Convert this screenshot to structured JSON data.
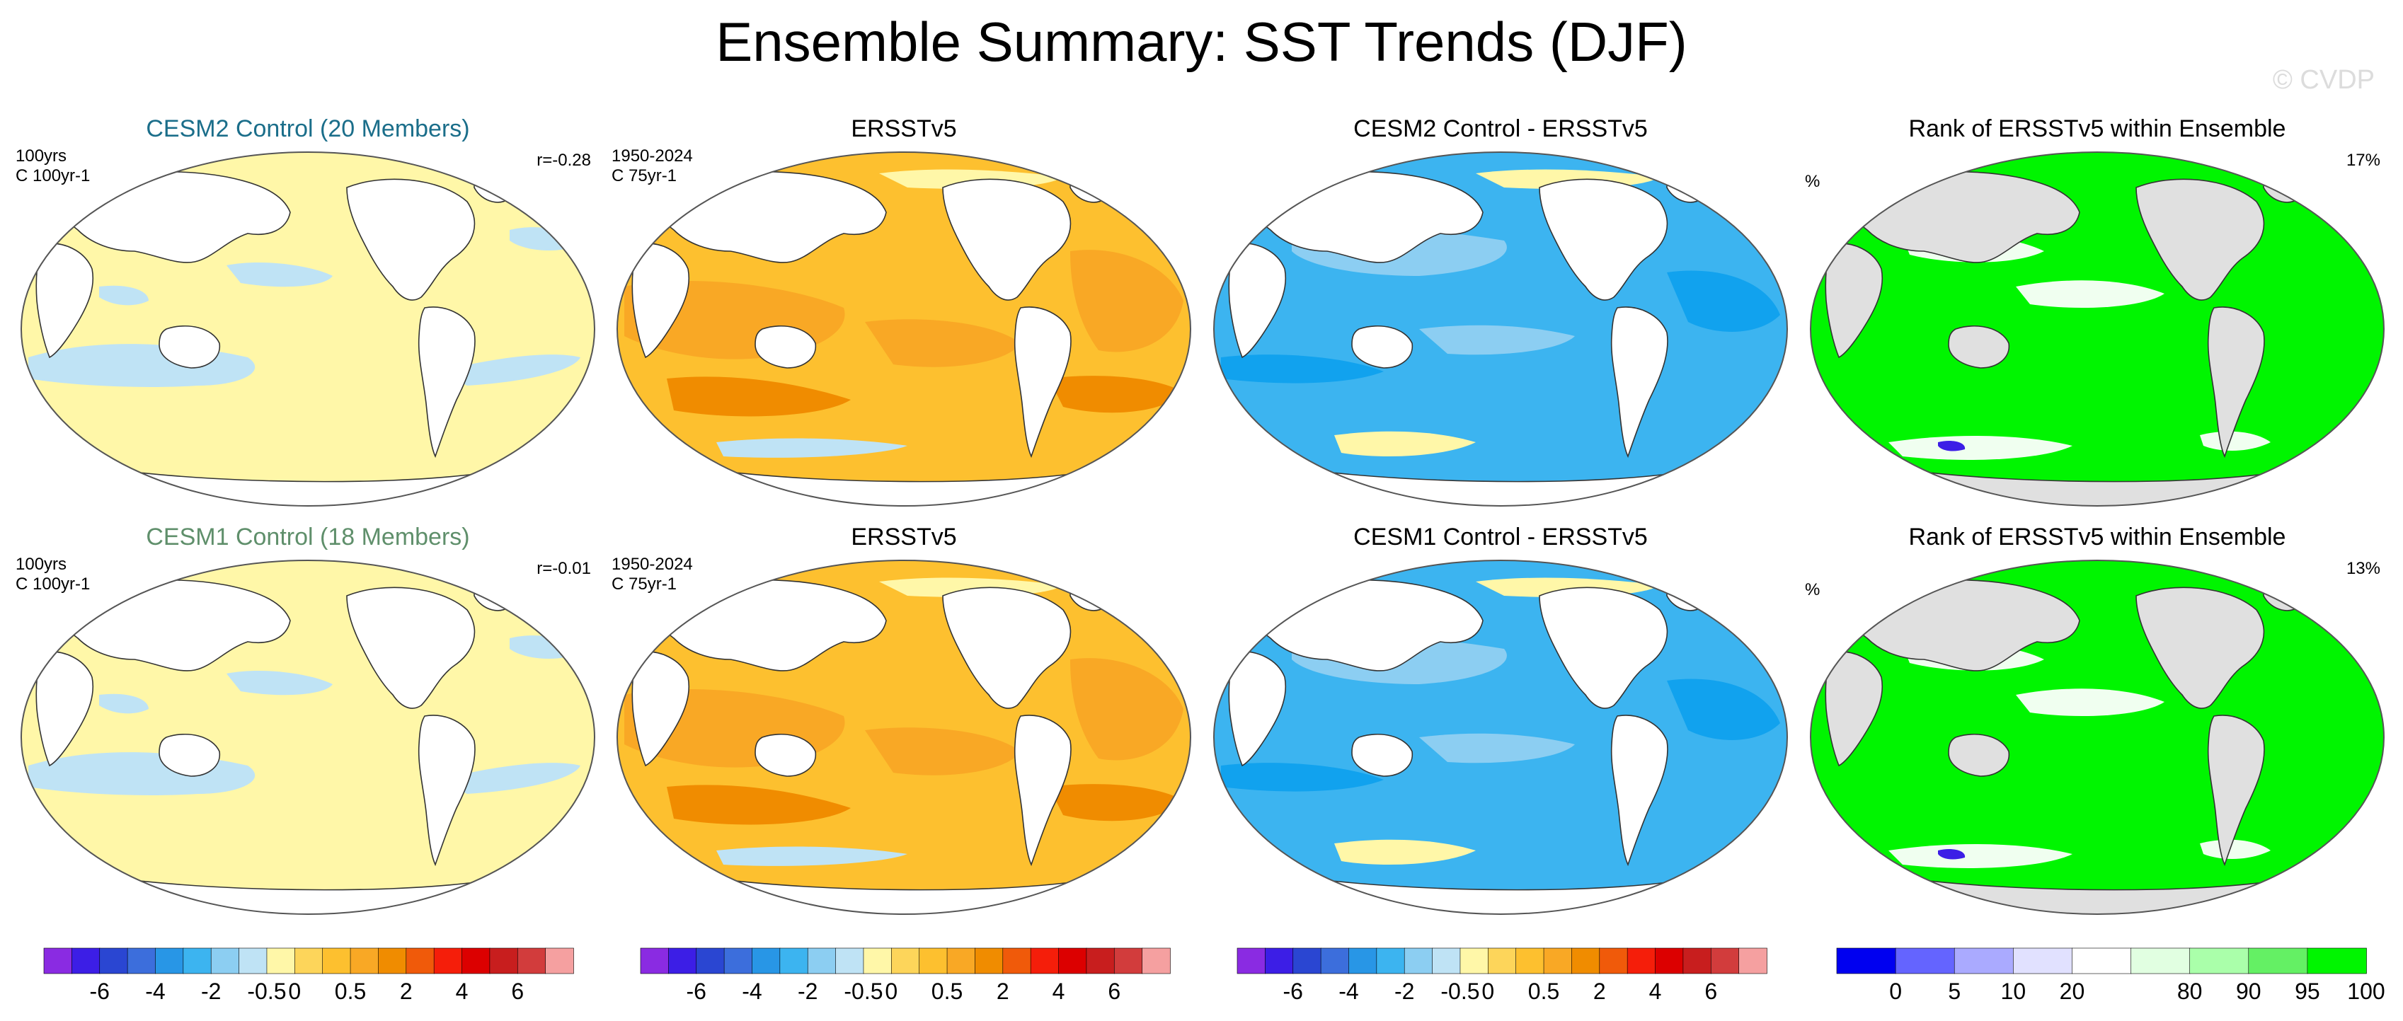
{
  "title": "Ensemble Summary: SST Trends (DJF)",
  "copyright": "© CVDP",
  "colors": {
    "ensemble_title_1": "#1b6e8a",
    "ensemble_title_2": "#5f8f6b",
    "ocean_neutral": "#fff7a8",
    "ocean_cool": "#bfe3f5",
    "ersst_light": "#fdc02f",
    "ersst_mid": "#f9a825",
    "ersst_dark": "#f08c00",
    "diff_light": "#8ccef2",
    "diff_mid": "#3cb4f0",
    "diff_dark": "#11a2ee",
    "rank_green": "#00f500",
    "rank_white": "#f0fff0",
    "land_white": "#ffffff",
    "land_gray": "#e0e0e0"
  },
  "rows": [
    {
      "panels": [
        {
          "title": "CESM2 Control (20 Members)",
          "left_text": [
            "100yrs",
            "C 100yr-1"
          ],
          "right_text": "r=-0.28",
          "kind": "ensemble"
        },
        {
          "title": "ERSSTv5",
          "left_text": [
            "1950-2024",
            "C 75yr-1"
          ],
          "right_text": "",
          "kind": "ersst"
        },
        {
          "title": "CESM2 Control - ERSSTv5",
          "left_text": [],
          "right_text": "",
          "kind": "diff"
        },
        {
          "title": "Rank of ERSSTv5 within Ensemble",
          "left_text": [
            "%"
          ],
          "right_text": "17%",
          "kind": "rank"
        }
      ]
    },
    {
      "panels": [
        {
          "title": "CESM1 Control (18 Members)",
          "left_text": [
            "100yrs",
            "C 100yr-1"
          ],
          "right_text": "r=-0.01",
          "kind": "ensemble"
        },
        {
          "title": "ERSSTv5",
          "left_text": [
            "1950-2024",
            "C 75yr-1"
          ],
          "right_text": "",
          "kind": "ersst"
        },
        {
          "title": "CESM1 Control - ERSSTv5",
          "left_text": [],
          "right_text": "",
          "kind": "diff"
        },
        {
          "title": "Rank of ERSSTv5 within Ensemble",
          "left_text": [
            "%"
          ],
          "right_text": "13%",
          "kind": "rank"
        }
      ]
    }
  ],
  "trend_colorbar": {
    "colors": [
      "#8a2be2",
      "#3c1ee6",
      "#2a46d2",
      "#3c6edc",
      "#2896e6",
      "#3cb4f0",
      "#8ccef2",
      "#bfe3f5",
      "#fff7a8",
      "#fdd55a",
      "#fdc02f",
      "#f9a825",
      "#f08c00",
      "#f05a0a",
      "#f51e0a",
      "#dc0000",
      "#c81e1e",
      "#d23c3c",
      "#f5a0a0"
    ],
    "labels": [
      "-6",
      "-4",
      "-2",
      "-0.5",
      "0",
      "0.5",
      "2",
      "4",
      "6"
    ],
    "label_boundaries": [
      2,
      4,
      6,
      8,
      9,
      11,
      13,
      15,
      17
    ]
  },
  "rank_colorbar": {
    "colors": [
      "#0000f0",
      "#6464ff",
      "#aaaaff",
      "#e1e1ff",
      "#ffffff",
      "#e1ffe1",
      "#aaffaa",
      "#64f064",
      "#00f500"
    ],
    "labels": [
      "0",
      "5",
      "10",
      "20",
      "80",
      "90",
      "95",
      "100"
    ],
    "label_boundaries": [
      1,
      2,
      3,
      4,
      6,
      7,
      8,
      9
    ]
  }
}
